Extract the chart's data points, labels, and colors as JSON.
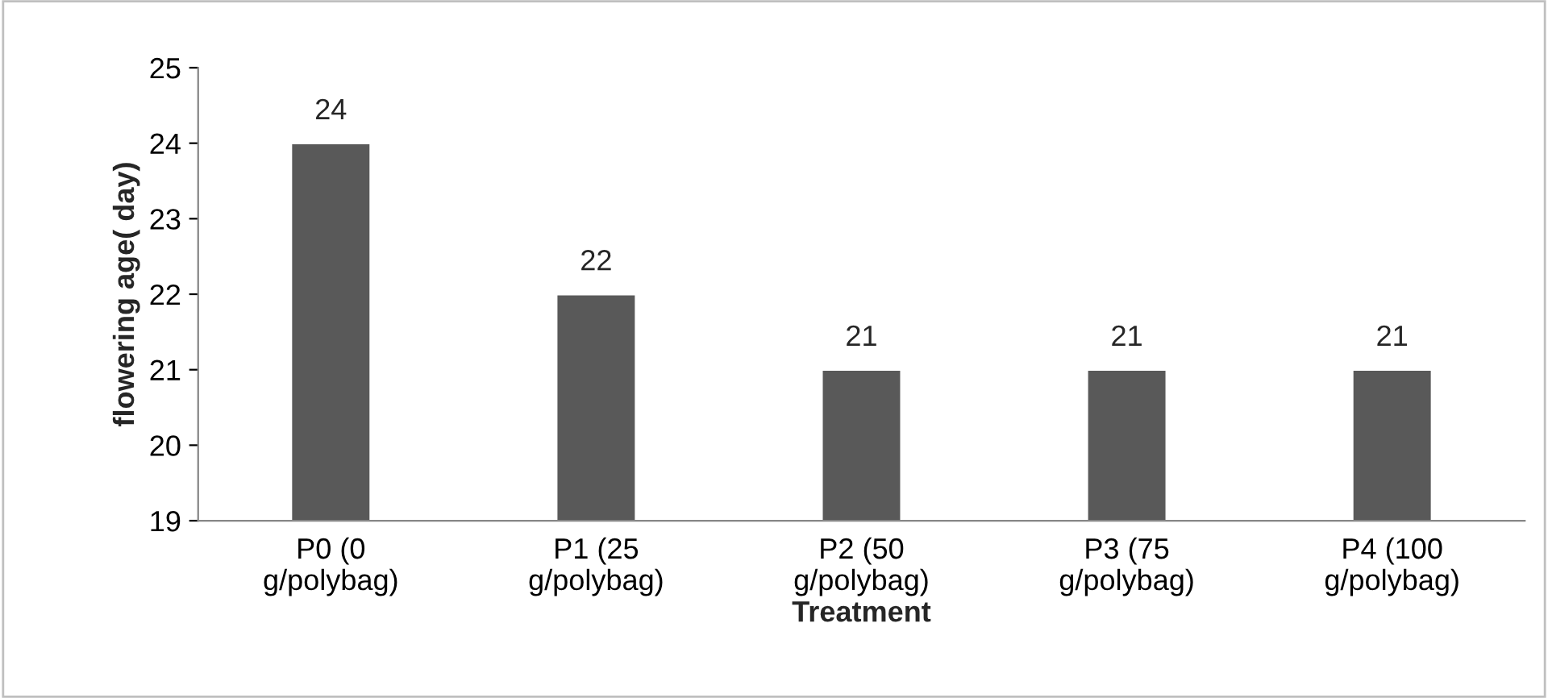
{
  "chart_data": {
    "type": "bar",
    "xlabel": "Treatment",
    "ylabel": "flowering age( day)",
    "categories": [
      "P0 (0\ng/polybag)",
      "P1 (25\ng/polybag)",
      "P2 (50\ng/polybag)",
      "P3 (75\ng/polybag)",
      "P4 (100\ng/polybag)"
    ],
    "values": [
      24,
      22,
      21,
      21,
      21
    ],
    "color": "#595959",
    "ylim": [
      19,
      25
    ],
    "yticks": [
      19,
      20,
      21,
      22,
      23,
      24,
      25
    ],
    "grid": false,
    "data_labels": true
  }
}
